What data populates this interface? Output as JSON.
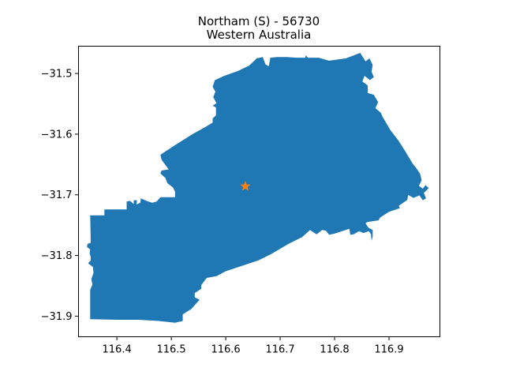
{
  "chart_data": {
    "type": "map",
    "title_line1": "Northam (S) - 56730",
    "title_line2": "Western Australia",
    "xlim": [
      116.3295,
      116.9935
    ],
    "ylim": [
      -31.934,
      -31.455
    ],
    "x_ticks": [
      116.4,
      116.5,
      116.6,
      116.7,
      116.8,
      116.9
    ],
    "x_tick_labels": [
      "116.4",
      "116.5",
      "116.6",
      "116.7",
      "116.8",
      "116.9"
    ],
    "y_ticks": [
      -31.5,
      -31.6,
      -31.7,
      -31.8,
      -31.9
    ],
    "y_tick_labels": [
      "−31.5",
      "−31.6",
      "−31.7",
      "−31.8",
      "−31.9"
    ],
    "region_color": "#1f77b4",
    "marker": {
      "shape": "star",
      "color": "#ff7f0e",
      "lon": 116.636,
      "lat": -31.686
    },
    "boundary": [
      [
        116.351,
        -31.905
      ],
      [
        116.351,
        -31.857
      ],
      [
        116.355,
        -31.848
      ],
      [
        116.353,
        -31.839
      ],
      [
        116.357,
        -31.829
      ],
      [
        116.356,
        -31.819
      ],
      [
        116.347,
        -31.813
      ],
      [
        116.352,
        -31.808
      ],
      [
        116.352,
        -31.802
      ],
      [
        116.35,
        -31.797
      ],
      [
        116.351,
        -31.79
      ],
      [
        116.345,
        -31.786
      ],
      [
        116.346,
        -31.781
      ],
      [
        116.352,
        -31.779
      ],
      [
        116.351,
        -31.734
      ],
      [
        116.377,
        -31.734
      ],
      [
        116.377,
        -31.724
      ],
      [
        116.418,
        -31.724
      ],
      [
        116.418,
        -31.711
      ],
      [
        116.424,
        -31.71
      ],
      [
        116.431,
        -31.715
      ],
      [
        116.431,
        -31.709
      ],
      [
        116.437,
        -31.709
      ],
      [
        116.436,
        -31.716
      ],
      [
        116.443,
        -31.713
      ],
      [
        116.444,
        -31.706
      ],
      [
        116.452,
        -31.709
      ],
      [
        116.458,
        -31.711
      ],
      [
        116.465,
        -31.713
      ],
      [
        116.473,
        -31.711
      ],
      [
        116.48,
        -31.704
      ],
      [
        116.507,
        -31.704
      ],
      [
        116.507,
        -31.695
      ],
      [
        116.503,
        -31.688
      ],
      [
        116.493,
        -31.681
      ],
      [
        116.489,
        -31.672
      ],
      [
        116.48,
        -31.665
      ],
      [
        116.482,
        -31.66
      ],
      [
        116.495,
        -31.658
      ],
      [
        116.482,
        -31.642
      ],
      [
        116.48,
        -31.634
      ],
      [
        116.507,
        -31.618
      ],
      [
        116.539,
        -31.6
      ],
      [
        116.565,
        -31.587
      ],
      [
        116.576,
        -31.581
      ],
      [
        116.576,
        -31.574
      ],
      [
        116.582,
        -31.569
      ],
      [
        116.582,
        -31.556
      ],
      [
        116.576,
        -31.553
      ],
      [
        116.583,
        -31.549
      ],
      [
        116.577,
        -31.539
      ],
      [
        116.581,
        -31.53
      ],
      [
        116.576,
        -31.522
      ],
      [
        116.58,
        -31.511
      ],
      [
        116.597,
        -31.504
      ],
      [
        116.622,
        -31.496
      ],
      [
        116.643,
        -31.487
      ],
      [
        116.657,
        -31.475
      ],
      [
        116.668,
        -31.473
      ],
      [
        116.673,
        -31.485
      ],
      [
        116.679,
        -31.488
      ],
      [
        116.682,
        -31.474
      ],
      [
        116.694,
        -31.473
      ],
      [
        116.713,
        -31.473
      ],
      [
        116.73,
        -31.474
      ],
      [
        116.746,
        -31.474
      ],
      [
        116.747,
        -31.47
      ],
      [
        116.751,
        -31.474
      ],
      [
        116.771,
        -31.474
      ],
      [
        116.79,
        -31.479
      ],
      [
        116.821,
        -31.475
      ],
      [
        116.847,
        -31.466
      ],
      [
        116.857,
        -31.48
      ],
      [
        116.864,
        -31.475
      ],
      [
        116.87,
        -31.486
      ],
      [
        116.868,
        -31.497
      ],
      [
        116.872,
        -31.506
      ],
      [
        116.865,
        -31.511
      ],
      [
        116.855,
        -31.504
      ],
      [
        116.851,
        -31.513
      ],
      [
        116.861,
        -31.52
      ],
      [
        116.861,
        -31.532
      ],
      [
        116.872,
        -31.535
      ],
      [
        116.88,
        -31.547
      ],
      [
        116.875,
        -31.557
      ],
      [
        116.885,
        -31.565
      ],
      [
        116.888,
        -31.571
      ],
      [
        116.903,
        -31.594
      ],
      [
        116.917,
        -31.61
      ],
      [
        116.931,
        -31.63
      ],
      [
        116.943,
        -31.648
      ],
      [
        116.95,
        -31.656
      ],
      [
        116.957,
        -31.665
      ],
      [
        116.96,
        -31.676
      ],
      [
        116.955,
        -31.685
      ],
      [
        116.962,
        -31.69
      ],
      [
        116.967,
        -31.684
      ],
      [
        116.973,
        -31.689
      ],
      [
        116.964,
        -31.697
      ],
      [
        116.968,
        -31.706
      ],
      [
        116.962,
        -31.709
      ],
      [
        116.956,
        -31.701
      ],
      [
        116.945,
        -31.705
      ],
      [
        116.935,
        -31.7
      ],
      [
        116.934,
        -31.707
      ],
      [
        116.933,
        -31.709
      ],
      [
        116.928,
        -31.712
      ],
      [
        116.918,
        -31.718
      ],
      [
        116.92,
        -31.722
      ],
      [
        116.9,
        -31.728
      ],
      [
        116.883,
        -31.738
      ],
      [
        116.881,
        -31.742
      ],
      [
        116.86,
        -31.745
      ],
      [
        116.857,
        -31.747
      ],
      [
        116.862,
        -31.754
      ],
      [
        116.87,
        -31.758
      ],
      [
        116.87,
        -31.769
      ],
      [
        116.868,
        -31.776
      ],
      [
        116.867,
        -31.765
      ],
      [
        116.863,
        -31.76
      ],
      [
        116.853,
        -31.763
      ],
      [
        116.845,
        -31.76
      ],
      [
        116.835,
        -31.765
      ],
      [
        116.829,
        -31.766
      ],
      [
        116.827,
        -31.756
      ],
      [
        116.8,
        -31.764
      ],
      [
        116.79,
        -31.766
      ],
      [
        116.784,
        -31.759
      ],
      [
        116.777,
        -31.758
      ],
      [
        116.767,
        -31.765
      ],
      [
        116.763,
        -31.763
      ],
      [
        116.755,
        -31.758
      ],
      [
        116.74,
        -31.77
      ],
      [
        116.715,
        -31.781
      ],
      [
        116.683,
        -31.798
      ],
      [
        116.66,
        -31.808
      ],
      [
        116.6,
        -31.826
      ],
      [
        116.583,
        -31.834
      ],
      [
        116.565,
        -31.837
      ],
      [
        116.555,
        -31.849
      ],
      [
        116.555,
        -31.855
      ],
      [
        116.543,
        -31.862
      ],
      [
        116.543,
        -31.869
      ],
      [
        116.552,
        -31.873
      ],
      [
        116.545,
        -31.88
      ],
      [
        116.537,
        -31.888
      ],
      [
        116.521,
        -31.897
      ],
      [
        116.521,
        -31.908
      ],
      [
        116.507,
        -31.911
      ],
      [
        116.477,
        -31.908
      ],
      [
        116.44,
        -31.906
      ],
      [
        116.4,
        -31.906
      ],
      [
        116.351,
        -31.905
      ]
    ]
  }
}
